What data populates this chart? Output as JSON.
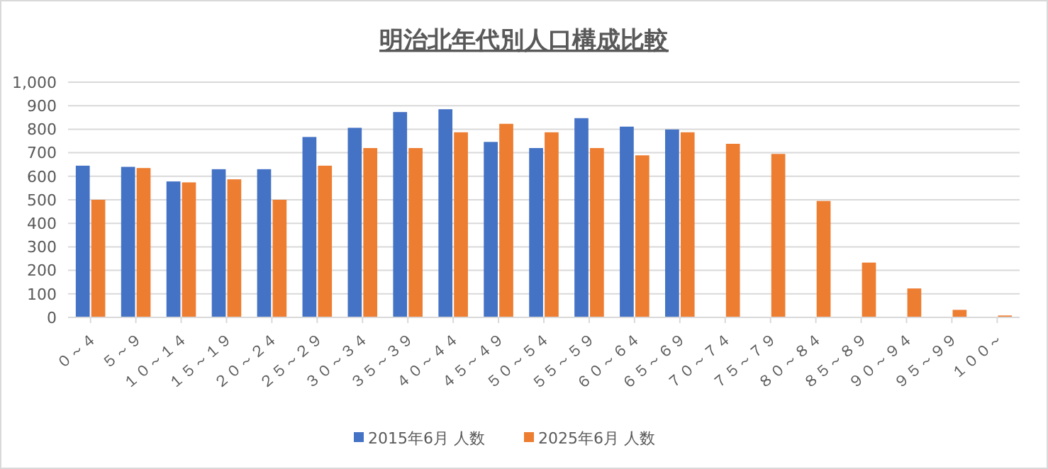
{
  "chart_data": {
    "type": "bar",
    "title": "明治北年代別人口構成比較",
    "categories": [
      "０～４",
      "５～９",
      "１０～１４",
      "１５～１９",
      "２０～２４",
      "２５～２９",
      "３０～３４",
      "３５～３９",
      "４０～４４",
      "４５～４９",
      "５０～５４",
      "５５～５９",
      "６０～６４",
      "６５～６９",
      "７０～７４",
      "７５～７９",
      "８０～８４",
      "８５～８９",
      "９０～９４",
      "９５～９９",
      "１００～"
    ],
    "series": [
      {
        "name": "2015年6月 人数",
        "color": "#4472c4",
        "values": [
          645,
          640,
          578,
          630,
          630,
          767,
          806,
          873,
          885,
          746,
          720,
          847,
          811,
          799,
          null,
          null,
          null,
          null,
          null,
          null,
          null
        ]
      },
      {
        "name": "2025年6月 人数",
        "color": "#ed7d31",
        "values": [
          500,
          635,
          574,
          587,
          500,
          645,
          720,
          720,
          787,
          823,
          787,
          720,
          689,
          787,
          738,
          695,
          495,
          233,
          123,
          32,
          8
        ]
      }
    ],
    "ylim": [
      0,
      1000
    ],
    "yticks": [
      {
        "value": 0,
        "label": "0"
      },
      {
        "value": 100,
        "label": "100"
      },
      {
        "value": 200,
        "label": "200"
      },
      {
        "value": 300,
        "label": "300"
      },
      {
        "value": 400,
        "label": "400"
      },
      {
        "value": 500,
        "label": "500"
      },
      {
        "value": 600,
        "label": "600"
      },
      {
        "value": 700,
        "label": "700"
      },
      {
        "value": 800,
        "label": "800"
      },
      {
        "value": 900,
        "label": "900"
      },
      {
        "value": 1000,
        "label": "1,000"
      }
    ],
    "grid": "y",
    "legend": "bottom"
  }
}
